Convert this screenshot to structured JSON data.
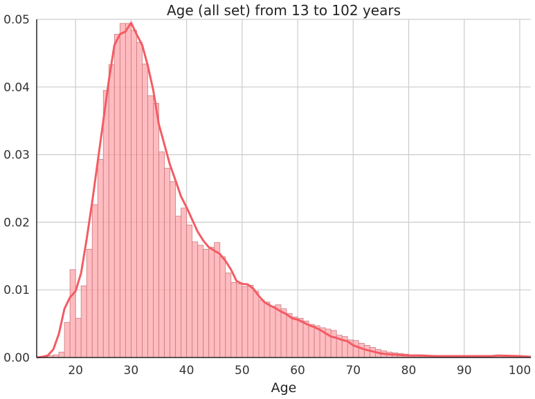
{
  "chart_data": {
    "type": "bar",
    "title": "Age (all set) from 13 to 102 years",
    "xlabel": "Age",
    "ylabel": "",
    "xlim": [
      13,
      102
    ],
    "ylim": [
      0,
      0.05
    ],
    "xticks": [
      "20",
      "30",
      "40",
      "50",
      "60",
      "70",
      "80",
      "90",
      "100"
    ],
    "yticks": [
      "0.00",
      "0.01",
      "0.02",
      "0.03",
      "0.04",
      "0.05"
    ],
    "grid": true,
    "colors": {
      "bar_fill": "#ff9fa5",
      "bar_edge": "#c97a80",
      "kde_line": "#f45b63",
      "grid": "#cccccc"
    },
    "histogram": {
      "bin_width": 1,
      "bin_start": 13,
      "densities": [
        0.0001,
        0.0001,
        0.0003,
        0.0004,
        0.0008,
        0.0052,
        0.013,
        0.0058,
        0.0106,
        0.016,
        0.0226,
        0.0293,
        0.0395,
        0.0433,
        0.0478,
        0.0494,
        0.0494,
        0.0484,
        0.0466,
        0.0434,
        0.0387,
        0.0376,
        0.0304,
        0.028,
        0.026,
        0.0209,
        0.0221,
        0.0196,
        0.0171,
        0.0166,
        0.016,
        0.0163,
        0.017,
        0.0149,
        0.0125,
        0.0111,
        0.0109,
        0.0105,
        0.0107,
        0.0098,
        0.0085,
        0.0082,
        0.0076,
        0.0078,
        0.0072,
        0.0065,
        0.006,
        0.0058,
        0.0054,
        0.0049,
        0.0047,
        0.0044,
        0.0042,
        0.004,
        0.0033,
        0.0031,
        0.0026,
        0.0025,
        0.0021,
        0.0018,
        0.0015,
        0.0012,
        0.001,
        0.0008,
        0.0007,
        0.0006,
        0.0005,
        0.0004,
        0.0004,
        0.0004,
        0.0003,
        0.0003,
        0.0003,
        0.0003,
        0.0003,
        0.0002,
        0.0002,
        0.0002,
        0.0002,
        0.0002,
        0.0002,
        0.0003,
        0.0002,
        0.0002,
        0.0002,
        0.0002,
        0.0003,
        0.0002,
        0.0001
      ]
    },
    "kde": {
      "x": [
        13,
        14,
        15,
        16,
        17,
        18,
        19,
        20,
        21,
        22,
        23,
        24,
        25,
        26,
        27,
        28,
        29,
        30,
        31,
        32,
        33,
        34,
        35,
        36,
        37,
        38,
        39,
        40,
        41,
        42,
        43,
        44,
        45,
        46,
        47,
        48,
        49,
        50,
        51,
        52,
        53,
        54,
        55,
        56,
        57,
        58,
        59,
        60,
        61,
        62,
        63,
        64,
        65,
        66,
        67,
        68,
        69,
        70,
        71,
        72,
        73,
        74,
        75,
        76,
        78,
        80,
        82,
        85,
        90,
        95,
        96,
        100,
        102
      ],
      "y": [
        0.0,
        0.0001,
        0.0003,
        0.0012,
        0.0035,
        0.0072,
        0.0089,
        0.0098,
        0.0125,
        0.0175,
        0.023,
        0.029,
        0.035,
        0.041,
        0.0462,
        0.0478,
        0.0482,
        0.0495,
        0.0478,
        0.0462,
        0.0432,
        0.0395,
        0.0345,
        0.0315,
        0.0285,
        0.0262,
        0.0238,
        0.0222,
        0.0204,
        0.0186,
        0.0173,
        0.0163,
        0.0158,
        0.0153,
        0.0143,
        0.013,
        0.0113,
        0.0109,
        0.0108,
        0.0102,
        0.0091,
        0.0082,
        0.0077,
        0.0073,
        0.0068,
        0.0064,
        0.0058,
        0.0056,
        0.0052,
        0.0048,
        0.0045,
        0.0041,
        0.0036,
        0.0031,
        0.0029,
        0.0026,
        0.0024,
        0.0018,
        0.0015,
        0.0012,
        0.001,
        0.0008,
        0.0006,
        0.0005,
        0.0004,
        0.0003,
        0.0003,
        0.0002,
        0.0002,
        0.0002,
        0.0003,
        0.0002,
        0.0001
      ]
    }
  }
}
